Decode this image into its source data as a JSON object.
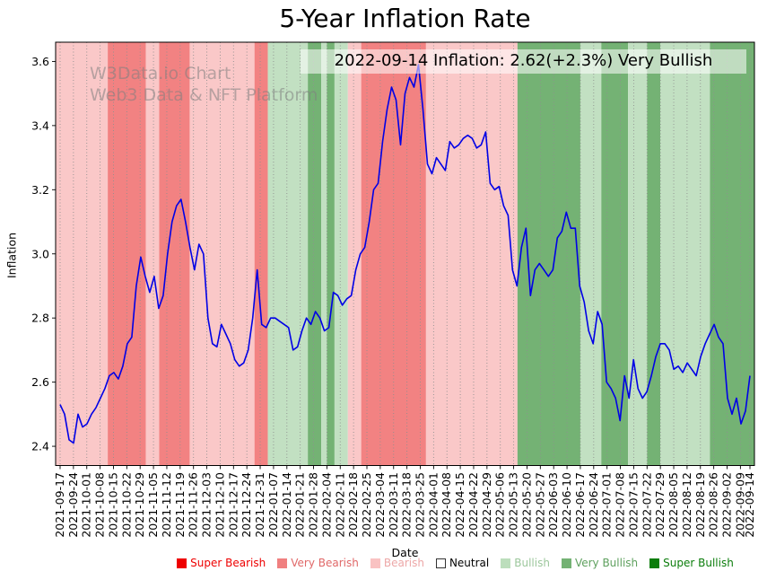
{
  "watermark": {
    "line1": "W3Data.io Chart",
    "line2": "Web3 Data & NFT Platform"
  },
  "annotation": {
    "text": "2022-09-14 Inflation: 2.62(+2.3%) Very Bullish"
  },
  "legend": {
    "items": [
      {
        "label": "Super Bearish",
        "color": "#ee0000",
        "text_color": "#ee0000"
      },
      {
        "label": "Very Bearish",
        "color": "#f08080",
        "text_color": "#e06868"
      },
      {
        "label": "Bearish",
        "color": "#f9c2c2",
        "text_color": "#eda8a8"
      },
      {
        "label": "Neutral",
        "color": "#ffffff",
        "text_color": "#000000"
      },
      {
        "label": "Bullish",
        "color": "#bcdebc",
        "text_color": "#9cc79c"
      },
      {
        "label": "Very Bullish",
        "color": "#74b274",
        "text_color": "#5ea05e"
      },
      {
        "label": "Super Bullish",
        "color": "#0b7d0b",
        "text_color": "#0b7d0b"
      }
    ]
  },
  "chart_data": {
    "type": "line",
    "title": "5-Year Inflation Rate",
    "xlabel": "Date",
    "ylabel": "Inflation",
    "ylim": [
      2.34,
      3.66
    ],
    "y_ticks": [
      2.4,
      2.6,
      2.8,
      3.0,
      3.2,
      3.4,
      3.6
    ],
    "x_start": "2021-09-17",
    "x_end": "2022-09-14",
    "x_tick_labels": [
      "2021-09-17",
      "2021-09-24",
      "2021-10-01",
      "2021-10-08",
      "2021-10-15",
      "2021-10-22",
      "2021-10-29",
      "2021-11-05",
      "2021-11-12",
      "2021-11-19",
      "2021-11-26",
      "2021-12-03",
      "2021-12-10",
      "2021-12-17",
      "2021-12-24",
      "2021-12-31",
      "2022-01-07",
      "2022-01-14",
      "2022-01-21",
      "2022-01-28",
      "2022-02-04",
      "2022-02-11",
      "2022-02-18",
      "2022-02-25",
      "2022-03-04",
      "2022-03-11",
      "2022-03-18",
      "2022-03-25",
      "2022-04-01",
      "2022-04-08",
      "2022-04-15",
      "2022-04-22",
      "2022-04-29",
      "2022-05-06",
      "2022-05-13",
      "2022-05-20",
      "2022-05-27",
      "2022-06-03",
      "2022-06-10",
      "2022-06-17",
      "2022-06-24",
      "2022-07-01",
      "2022-07-08",
      "2022-07-15",
      "2022-07-22",
      "2022-07-29",
      "2022-08-05",
      "2022-08-12",
      "2022-08-19",
      "2022-08-26",
      "2022-09-02",
      "2022-09-09",
      "2022-09-14"
    ],
    "line_color": "#0000e6",
    "grid_color": "#8f8f8f",
    "sentiment_colors": {
      "super_bearish": "#ee0000",
      "very_bearish": "#f28282",
      "bearish": "#fac8c8",
      "neutral": "#ffffff",
      "bullish": "#c2e0c2",
      "very_bullish": "#74b274",
      "super_bullish": "#0b7d0b"
    },
    "bands": [
      {
        "from": "2021-09-17",
        "to": "2021-10-12",
        "sentiment": "bearish"
      },
      {
        "from": "2021-10-12",
        "to": "2021-11-01",
        "sentiment": "very_bearish"
      },
      {
        "from": "2021-11-01",
        "to": "2021-11-08",
        "sentiment": "bearish"
      },
      {
        "from": "2021-11-08",
        "to": "2021-11-24",
        "sentiment": "very_bearish"
      },
      {
        "from": "2021-11-24",
        "to": "2021-12-28",
        "sentiment": "bearish"
      },
      {
        "from": "2021-12-28",
        "to": "2022-01-04",
        "sentiment": "very_bearish"
      },
      {
        "from": "2022-01-04",
        "to": "2022-01-25",
        "sentiment": "bullish"
      },
      {
        "from": "2022-01-25",
        "to": "2022-02-01",
        "sentiment": "very_bullish"
      },
      {
        "from": "2022-02-01",
        "to": "2022-02-04",
        "sentiment": "bullish"
      },
      {
        "from": "2022-02-04",
        "to": "2022-02-08",
        "sentiment": "very_bullish"
      },
      {
        "from": "2022-02-08",
        "to": "2022-02-15",
        "sentiment": "bullish"
      },
      {
        "from": "2022-02-15",
        "to": "2022-02-22",
        "sentiment": "bearish"
      },
      {
        "from": "2022-02-22",
        "to": "2022-03-28",
        "sentiment": "very_bearish"
      },
      {
        "from": "2022-03-28",
        "to": "2022-05-15",
        "sentiment": "bearish"
      },
      {
        "from": "2022-05-15",
        "to": "2022-06-17",
        "sentiment": "very_bullish"
      },
      {
        "from": "2022-06-17",
        "to": "2022-06-28",
        "sentiment": "bullish"
      },
      {
        "from": "2022-06-28",
        "to": "2022-07-12",
        "sentiment": "very_bullish"
      },
      {
        "from": "2022-07-12",
        "to": "2022-07-22",
        "sentiment": "bullish"
      },
      {
        "from": "2022-07-22",
        "to": "2022-07-29",
        "sentiment": "very_bullish"
      },
      {
        "from": "2022-07-29",
        "to": "2022-08-24",
        "sentiment": "bullish"
      },
      {
        "from": "2022-08-24",
        "to": "2022-09-14",
        "sentiment": "very_bullish"
      }
    ],
    "series": [
      {
        "name": "Inflation",
        "values": [
          2.53,
          2.5,
          2.42,
          2.41,
          2.5,
          2.46,
          2.47,
          2.5,
          2.52,
          2.55,
          2.58,
          2.62,
          2.63,
          2.61,
          2.65,
          2.72,
          2.74,
          2.9,
          2.99,
          2.93,
          2.88,
          2.93,
          2.83,
          2.87,
          3.0,
          3.1,
          3.15,
          3.17,
          3.1,
          3.02,
          2.95,
          3.03,
          3.0,
          2.8,
          2.72,
          2.71,
          2.78,
          2.75,
          2.72,
          2.67,
          2.65,
          2.66,
          2.7,
          2.8,
          2.95,
          2.78,
          2.77,
          2.8,
          2.8,
          2.79,
          2.78,
          2.77,
          2.7,
          2.71,
          2.76,
          2.8,
          2.78,
          2.82,
          2.8,
          2.76,
          2.77,
          2.88,
          2.87,
          2.84,
          2.86,
          2.87,
          2.95,
          3.0,
          3.02,
          3.1,
          3.2,
          3.22,
          3.35,
          3.45,
          3.52,
          3.48,
          3.34,
          3.5,
          3.55,
          3.52,
          3.59,
          3.45,
          3.28,
          3.25,
          3.3,
          3.28,
          3.26,
          3.35,
          3.33,
          3.34,
          3.36,
          3.37,
          3.36,
          3.33,
          3.34,
          3.38,
          3.22,
          3.2,
          3.21,
          3.15,
          3.12,
          2.95,
          2.9,
          3.02,
          3.08,
          2.87,
          2.95,
          2.97,
          2.95,
          2.93,
          2.95,
          3.05,
          3.07,
          3.13,
          3.08,
          3.08,
          2.9,
          2.85,
          2.76,
          2.72,
          2.82,
          2.78,
          2.6,
          2.58,
          2.55,
          2.48,
          2.62,
          2.55,
          2.67,
          2.58,
          2.55,
          2.57,
          2.62,
          2.68,
          2.72,
          2.72,
          2.7,
          2.64,
          2.65,
          2.63,
          2.66,
          2.64,
          2.62,
          2.68,
          2.72,
          2.75,
          2.78,
          2.74,
          2.72,
          2.55,
          2.5,
          2.55,
          2.47,
          2.51,
          2.62
        ]
      }
    ]
  }
}
